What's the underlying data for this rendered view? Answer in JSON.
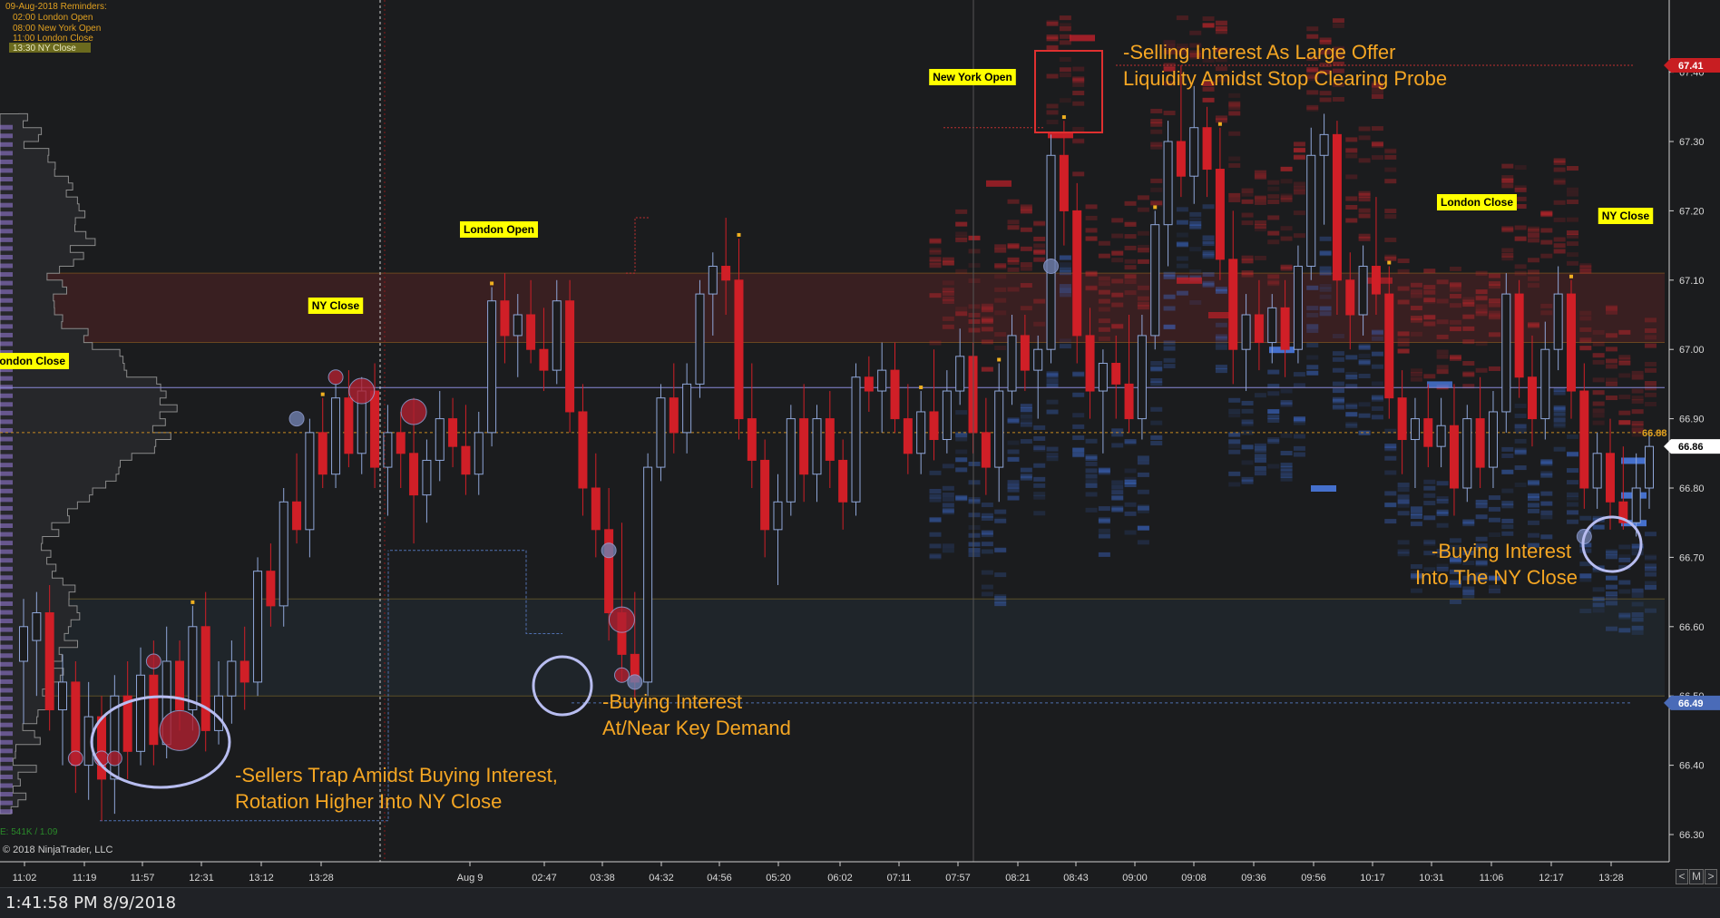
{
  "reminders": {
    "header": "09-Aug-2018 Reminders:",
    "items": [
      "02:00 London Open",
      "08:00 New York Open",
      "11:00 London Close",
      "13:30 NY Close"
    ]
  },
  "copyright": "© 2018 NinjaTrader, LLC",
  "footer_stat": "E: 541K / 1.09",
  "status_time": "1:41:58 PM 8/9/2018",
  "nav": {
    "left": "<",
    "mid": "M",
    "right": ">"
  },
  "session_labels": [
    "London Close",
    "NY Close",
    "London Open",
    "New York Open",
    "London Close",
    "NY Close"
  ],
  "annotations": [
    {
      "lines": [
        "-Selling Interest As Large Offer",
        "Liquidity Amidst Stop Clearing Probe"
      ]
    },
    {
      "lines": [
        "-Buying Interest",
        "At/Near Key Demand"
      ]
    },
    {
      "lines": [
        "-Sellers Trap Amidst Buying Interest,",
        "Rotation Higher Into NY Close"
      ]
    },
    {
      "lines": [
        "-Buying Interest",
        "Into The NY Close"
      ]
    }
  ],
  "colors": {
    "background": "#1b1c1e",
    "up_candle": "#8fa6d8",
    "down_candle": "#d01f27",
    "annotation_text": "#f5a623",
    "session_label_bg": "#ffff00",
    "ask_heat": "#c8262c",
    "bid_heat": "#3f6fd6",
    "supply_zone": "#4a2224",
    "demand_zone": "#20262b"
  },
  "chart_data": {
    "type": "candlestick",
    "ylim": [
      66.28,
      67.5
    ],
    "y_ticks": [
      "67.40",
      "67.30",
      "67.20",
      "67.10",
      "67.00",
      "66.90",
      "66.80",
      "66.70",
      "66.60",
      "66.50",
      "66.40",
      "66.30"
    ],
    "x_tick_labels": [
      "11:02",
      "11:19",
      "11:57",
      "12:31",
      "13:12",
      "13:28",
      "Aug 9",
      "02:47",
      "03:38",
      "04:32",
      "04:56",
      "05:20",
      "06:02",
      "07:11",
      "07:57",
      "08:21",
      "08:43",
      "09:00",
      "09:08",
      "09:36",
      "09:56",
      "10:17",
      "10:31",
      "11:06",
      "12:17",
      "13:28"
    ],
    "price_tags": [
      {
        "value": 67.41,
        "label": "67.41"
      },
      {
        "value": 66.88,
        "label": "66.88"
      },
      {
        "value": 66.86,
        "label": "66.86"
      },
      {
        "value": 66.49,
        "label": "66.49"
      }
    ],
    "candles": [
      {
        "o": 66.55,
        "h": 66.64,
        "l": 66.46,
        "c": 66.6
      },
      {
        "o": 66.58,
        "h": 66.65,
        "l": 66.5,
        "c": 66.62
      },
      {
        "o": 66.62,
        "h": 66.66,
        "l": 66.45,
        "c": 66.48
      },
      {
        "o": 66.48,
        "h": 66.56,
        "l": 66.4,
        "c": 66.52
      },
      {
        "o": 66.52,
        "h": 66.55,
        "l": 66.36,
        "c": 66.4
      },
      {
        "o": 66.4,
        "h": 66.52,
        "l": 66.35,
        "c": 66.47
      },
      {
        "o": 66.47,
        "h": 66.5,
        "l": 66.32,
        "c": 66.38
      },
      {
        "o": 66.38,
        "h": 66.53,
        "l": 66.33,
        "c": 66.5
      },
      {
        "o": 66.5,
        "h": 66.55,
        "l": 66.38,
        "c": 66.42
      },
      {
        "o": 66.42,
        "h": 66.57,
        "l": 66.4,
        "c": 66.53
      },
      {
        "o": 66.53,
        "h": 66.58,
        "l": 66.4,
        "c": 66.43
      },
      {
        "o": 66.43,
        "h": 66.6,
        "l": 66.41,
        "c": 66.55
      },
      {
        "o": 66.55,
        "h": 66.58,
        "l": 66.45,
        "c": 66.48
      },
      {
        "o": 66.48,
        "h": 66.63,
        "l": 66.45,
        "c": 66.6
      },
      {
        "o": 66.6,
        "h": 66.65,
        "l": 66.42,
        "c": 66.45
      },
      {
        "o": 66.45,
        "h": 66.55,
        "l": 66.43,
        "c": 66.5
      },
      {
        "o": 66.5,
        "h": 66.58,
        "l": 66.46,
        "c": 66.55
      },
      {
        "o": 66.55,
        "h": 66.6,
        "l": 66.48,
        "c": 66.52
      },
      {
        "o": 66.52,
        "h": 66.7,
        "l": 66.5,
        "c": 66.68
      },
      {
        "o": 66.68,
        "h": 66.72,
        "l": 66.6,
        "c": 66.63
      },
      {
        "o": 66.63,
        "h": 66.8,
        "l": 66.6,
        "c": 66.78
      },
      {
        "o": 66.78,
        "h": 66.85,
        "l": 66.72,
        "c": 66.74
      },
      {
        "o": 66.74,
        "h": 66.9,
        "l": 66.7,
        "c": 66.88
      },
      {
        "o": 66.88,
        "h": 66.93,
        "l": 66.8,
        "c": 66.82
      },
      {
        "o": 66.82,
        "h": 66.95,
        "l": 66.8,
        "c": 66.93
      },
      {
        "o": 66.93,
        "h": 66.97,
        "l": 66.83,
        "c": 66.85
      },
      {
        "o": 66.85,
        "h": 66.96,
        "l": 66.82,
        "c": 66.94
      },
      {
        "o": 66.94,
        "h": 66.98,
        "l": 66.8,
        "c": 66.83
      },
      {
        "o": 66.83,
        "h": 66.92,
        "l": 66.76,
        "c": 66.88
      },
      {
        "o": 66.88,
        "h": 66.91,
        "l": 66.8,
        "c": 66.85
      },
      {
        "o": 66.85,
        "h": 66.93,
        "l": 66.72,
        "c": 66.79
      },
      {
        "o": 66.79,
        "h": 66.87,
        "l": 66.75,
        "c": 66.84
      },
      {
        "o": 66.84,
        "h": 66.94,
        "l": 66.81,
        "c": 66.9
      },
      {
        "o": 66.9,
        "h": 66.93,
        "l": 66.83,
        "c": 66.86
      },
      {
        "o": 66.86,
        "h": 66.92,
        "l": 66.79,
        "c": 66.82
      },
      {
        "o": 66.82,
        "h": 66.91,
        "l": 66.79,
        "c": 66.88
      },
      {
        "o": 66.88,
        "h": 67.09,
        "l": 66.86,
        "c": 67.07
      },
      {
        "o": 67.07,
        "h": 67.11,
        "l": 66.98,
        "c": 67.02
      },
      {
        "o": 67.02,
        "h": 67.08,
        "l": 66.96,
        "c": 67.05
      },
      {
        "o": 67.05,
        "h": 67.1,
        "l": 66.98,
        "c": 67.0
      },
      {
        "o": 67.0,
        "h": 67.06,
        "l": 66.94,
        "c": 66.97
      },
      {
        "o": 66.97,
        "h": 67.1,
        "l": 66.95,
        "c": 67.07
      },
      {
        "o": 67.07,
        "h": 67.1,
        "l": 66.88,
        "c": 66.91
      },
      {
        "o": 66.91,
        "h": 66.95,
        "l": 66.76,
        "c": 66.8
      },
      {
        "o": 66.8,
        "h": 66.85,
        "l": 66.7,
        "c": 66.74
      },
      {
        "o": 66.74,
        "h": 66.8,
        "l": 66.58,
        "c": 66.62
      },
      {
        "o": 66.62,
        "h": 66.75,
        "l": 66.52,
        "c": 66.56
      },
      {
        "o": 66.56,
        "h": 66.65,
        "l": 66.49,
        "c": 66.52
      },
      {
        "o": 66.52,
        "h": 66.85,
        "l": 66.5,
        "c": 66.83
      },
      {
        "o": 66.83,
        "h": 66.95,
        "l": 66.81,
        "c": 66.93
      },
      {
        "o": 66.93,
        "h": 66.98,
        "l": 66.85,
        "c": 66.88
      },
      {
        "o": 66.88,
        "h": 66.98,
        "l": 66.85,
        "c": 66.95
      },
      {
        "o": 66.95,
        "h": 67.1,
        "l": 66.93,
        "c": 67.08
      },
      {
        "o": 67.08,
        "h": 67.14,
        "l": 67.02,
        "c": 67.12
      },
      {
        "o": 67.12,
        "h": 67.19,
        "l": 67.05,
        "c": 67.1
      },
      {
        "o": 67.1,
        "h": 67.16,
        "l": 66.87,
        "c": 66.9
      },
      {
        "o": 66.9,
        "h": 66.98,
        "l": 66.8,
        "c": 66.84
      },
      {
        "o": 66.84,
        "h": 66.87,
        "l": 66.7,
        "c": 66.74
      },
      {
        "o": 66.74,
        "h": 66.82,
        "l": 66.66,
        "c": 66.78
      },
      {
        "o": 66.78,
        "h": 66.92,
        "l": 66.76,
        "c": 66.9
      },
      {
        "o": 66.9,
        "h": 66.95,
        "l": 66.78,
        "c": 66.82
      },
      {
        "o": 66.82,
        "h": 66.92,
        "l": 66.78,
        "c": 66.9
      },
      {
        "o": 66.9,
        "h": 66.94,
        "l": 66.8,
        "c": 66.84
      },
      {
        "o": 66.84,
        "h": 66.87,
        "l": 66.74,
        "c": 66.78
      },
      {
        "o": 66.78,
        "h": 66.98,
        "l": 66.76,
        "c": 66.96
      },
      {
        "o": 66.96,
        "h": 66.99,
        "l": 66.91,
        "c": 66.94
      },
      {
        "o": 66.94,
        "h": 67.01,
        "l": 66.88,
        "c": 66.97
      },
      {
        "o": 66.97,
        "h": 67.01,
        "l": 66.88,
        "c": 66.9
      },
      {
        "o": 66.9,
        "h": 66.95,
        "l": 66.82,
        "c": 66.85
      },
      {
        "o": 66.85,
        "h": 66.94,
        "l": 66.82,
        "c": 66.91
      },
      {
        "o": 66.91,
        "h": 67.0,
        "l": 66.84,
        "c": 66.87
      },
      {
        "o": 66.87,
        "h": 66.97,
        "l": 66.85,
        "c": 66.94
      },
      {
        "o": 66.94,
        "h": 67.03,
        "l": 66.92,
        "c": 66.99
      },
      {
        "o": 66.99,
        "h": 67.01,
        "l": 66.85,
        "c": 66.88
      },
      {
        "o": 66.88,
        "h": 66.93,
        "l": 66.79,
        "c": 66.83
      },
      {
        "o": 66.83,
        "h": 66.98,
        "l": 66.78,
        "c": 66.94
      },
      {
        "o": 66.94,
        "h": 67.05,
        "l": 66.92,
        "c": 67.02
      },
      {
        "o": 67.02,
        "h": 67.05,
        "l": 66.94,
        "c": 66.97
      },
      {
        "o": 66.97,
        "h": 67.02,
        "l": 66.9,
        "c": 67.0
      },
      {
        "o": 67.0,
        "h": 67.31,
        "l": 66.98,
        "c": 67.28
      },
      {
        "o": 67.28,
        "h": 67.33,
        "l": 67.15,
        "c": 67.2
      },
      {
        "o": 67.2,
        "h": 67.24,
        "l": 66.98,
        "c": 67.02
      },
      {
        "o": 67.02,
        "h": 67.06,
        "l": 66.9,
        "c": 66.94
      },
      {
        "o": 66.94,
        "h": 67.0,
        "l": 66.85,
        "c": 66.98
      },
      {
        "o": 66.98,
        "h": 67.02,
        "l": 66.9,
        "c": 66.95
      },
      {
        "o": 66.95,
        "h": 67.05,
        "l": 66.88,
        "c": 66.9
      },
      {
        "o": 66.9,
        "h": 67.05,
        "l": 66.87,
        "c": 67.02
      },
      {
        "o": 67.02,
        "h": 67.2,
        "l": 67.0,
        "c": 67.18
      },
      {
        "o": 67.18,
        "h": 67.33,
        "l": 67.12,
        "c": 67.3
      },
      {
        "o": 67.3,
        "h": 67.41,
        "l": 67.22,
        "c": 67.25
      },
      {
        "o": 67.25,
        "h": 67.38,
        "l": 67.21,
        "c": 67.32
      },
      {
        "o": 67.32,
        "h": 67.35,
        "l": 67.22,
        "c": 67.26
      },
      {
        "o": 67.26,
        "h": 67.32,
        "l": 67.1,
        "c": 67.13
      },
      {
        "o": 67.13,
        "h": 67.2,
        "l": 66.95,
        "c": 67.0
      },
      {
        "o": 67.0,
        "h": 67.08,
        "l": 66.94,
        "c": 67.05
      },
      {
        "o": 67.05,
        "h": 67.1,
        "l": 66.97,
        "c": 67.01
      },
      {
        "o": 67.01,
        "h": 67.08,
        "l": 66.98,
        "c": 67.06
      },
      {
        "o": 67.06,
        "h": 67.1,
        "l": 66.96,
        "c": 67.0
      },
      {
        "o": 67.0,
        "h": 67.15,
        "l": 66.98,
        "c": 67.12
      },
      {
        "o": 67.12,
        "h": 67.32,
        "l": 67.1,
        "c": 67.28
      },
      {
        "o": 67.28,
        "h": 67.34,
        "l": 67.18,
        "c": 67.31
      },
      {
        "o": 67.31,
        "h": 67.33,
        "l": 67.05,
        "c": 67.1
      },
      {
        "o": 67.1,
        "h": 67.14,
        "l": 67.0,
        "c": 67.05
      },
      {
        "o": 67.05,
        "h": 67.15,
        "l": 67.02,
        "c": 67.12
      },
      {
        "o": 67.12,
        "h": 67.22,
        "l": 67.05,
        "c": 67.08
      },
      {
        "o": 67.08,
        "h": 67.12,
        "l": 66.9,
        "c": 66.93
      },
      {
        "o": 66.93,
        "h": 66.97,
        "l": 66.82,
        "c": 66.87
      },
      {
        "o": 66.87,
        "h": 66.93,
        "l": 66.8,
        "c": 66.9
      },
      {
        "o": 66.9,
        "h": 66.95,
        "l": 66.83,
        "c": 66.86
      },
      {
        "o": 66.86,
        "h": 66.93,
        "l": 66.83,
        "c": 66.89
      },
      {
        "o": 66.89,
        "h": 66.95,
        "l": 66.76,
        "c": 66.8
      },
      {
        "o": 66.8,
        "h": 66.92,
        "l": 66.78,
        "c": 66.9
      },
      {
        "o": 66.9,
        "h": 66.96,
        "l": 66.8,
        "c": 66.83
      },
      {
        "o": 66.83,
        "h": 66.94,
        "l": 66.8,
        "c": 66.91
      },
      {
        "o": 66.91,
        "h": 67.11,
        "l": 66.88,
        "c": 67.08
      },
      {
        "o": 67.08,
        "h": 67.1,
        "l": 66.93,
        "c": 66.96
      },
      {
        "o": 66.96,
        "h": 67.02,
        "l": 66.86,
        "c": 66.9
      },
      {
        "o": 66.9,
        "h": 67.04,
        "l": 66.87,
        "c": 67.0
      },
      {
        "o": 67.0,
        "h": 67.12,
        "l": 66.97,
        "c": 67.08
      },
      {
        "o": 67.08,
        "h": 67.1,
        "l": 66.9,
        "c": 66.94
      },
      {
        "o": 66.94,
        "h": 66.98,
        "l": 66.77,
        "c": 66.8
      },
      {
        "o": 66.8,
        "h": 66.88,
        "l": 66.77,
        "c": 66.85
      },
      {
        "o": 66.85,
        "h": 66.9,
        "l": 66.74,
        "c": 66.78
      },
      {
        "o": 66.78,
        "h": 66.86,
        "l": 66.74,
        "c": 66.75
      },
      {
        "o": 66.75,
        "h": 66.85,
        "l": 66.73,
        "c": 66.8
      },
      {
        "o": 66.8,
        "h": 66.88,
        "l": 66.77,
        "c": 66.86
      }
    ],
    "signal_bubbles": [
      {
        "i": 4,
        "p": 66.41,
        "size": 1,
        "side": "sell"
      },
      {
        "i": 6,
        "p": 66.41,
        "size": 1,
        "side": "sell"
      },
      {
        "i": 7,
        "p": 66.41,
        "size": 1,
        "side": "sell"
      },
      {
        "i": 10,
        "p": 66.55,
        "size": 1,
        "side": "sell"
      },
      {
        "i": 12,
        "p": 66.45,
        "size": 3,
        "side": "sell"
      },
      {
        "i": 21,
        "p": 66.9,
        "size": 1,
        "side": "buy"
      },
      {
        "i": 24,
        "p": 66.96,
        "size": 1,
        "side": "sell"
      },
      {
        "i": 26,
        "p": 66.94,
        "size": 2,
        "side": "sell"
      },
      {
        "i": 30,
        "p": 66.91,
        "size": 2,
        "side": "sell"
      },
      {
        "i": 45,
        "p": 66.71,
        "size": 1,
        "side": "buy"
      },
      {
        "i": 46,
        "p": 66.61,
        "size": 2,
        "side": "sell"
      },
      {
        "i": 46,
        "p": 66.53,
        "size": 1,
        "side": "sell"
      },
      {
        "i": 47,
        "p": 66.52,
        "size": 1,
        "side": "buy"
      },
      {
        "i": 79,
        "p": 67.12,
        "size": 1,
        "side": "buy"
      },
      {
        "i": 120,
        "p": 66.73,
        "size": 1,
        "side": "buy"
      }
    ],
    "legend_position": "none",
    "grid": false
  }
}
